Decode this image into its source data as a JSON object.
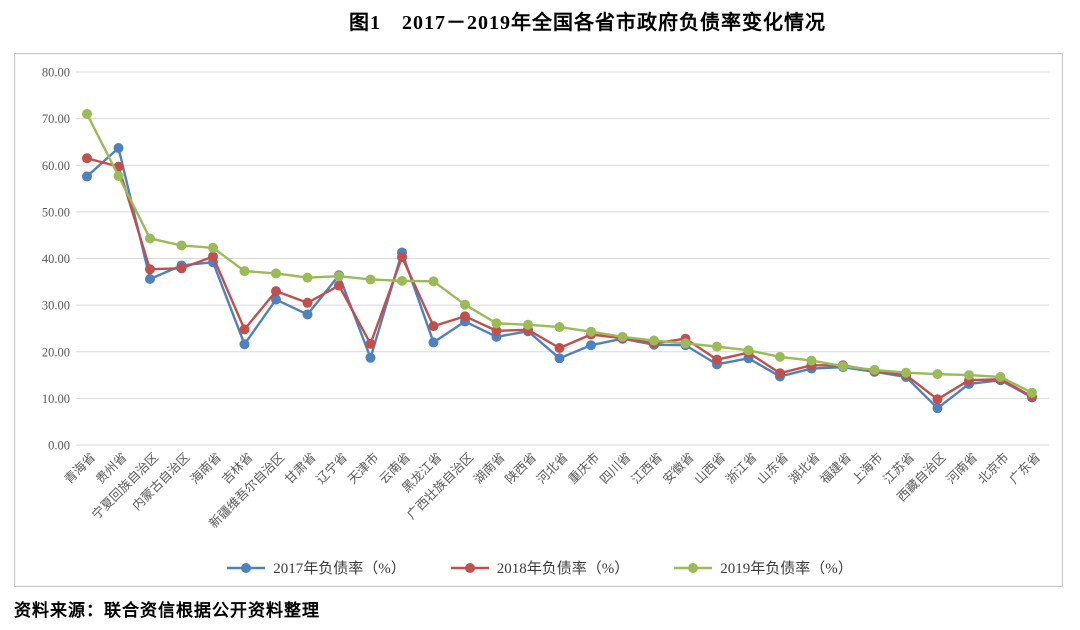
{
  "title": "图1　2017－2019年全国各省市政府负债率变化情况",
  "source": "资料来源：联合资信根据公开资料整理",
  "colors": {
    "s2017": "#4F81BD",
    "s2018": "#C0504D",
    "s2019": "#9BBB59",
    "grid": "#D9D9D9",
    "border": "#C9C9C9",
    "axis_text": "#595959",
    "legend_text": "#3B3B3B"
  },
  "chart_data": {
    "type": "line",
    "title": "图1　2017－2019年全国各省市政府负债率变化情况",
    "ylim": [
      0,
      80
    ],
    "ytick_step": 10,
    "yticks": [
      "80.00",
      "70.00",
      "60.00",
      "50.00",
      "40.00",
      "30.00",
      "20.00",
      "10.00",
      "0.00"
    ],
    "grid": "horizontal",
    "legend_position": "bottom",
    "categories": [
      "青海省",
      "贵州省",
      "宁夏回族自治区",
      "内蒙古自治区",
      "海南省",
      "吉林省",
      "新疆维吾尔自治区",
      "甘肃省",
      "辽宁省",
      "天津市",
      "云南省",
      "黑龙江省",
      "广西壮族自治区",
      "湖南省",
      "陕西省",
      "河北省",
      "重庆市",
      "四川省",
      "江西省",
      "安徽省",
      "山西省",
      "浙江省",
      "山东省",
      "湖北省",
      "福建省",
      "上海市",
      "江苏省",
      "西藏自治区",
      "河南省",
      "北京市",
      "广东省"
    ],
    "series": [
      {
        "id": "2017",
        "name": "2017年负债率（%）",
        "color": "s2017",
        "values": [
          57.6,
          63.7,
          35.6,
          38.5,
          39.2,
          21.6,
          31.2,
          28.0,
          36.4,
          18.7,
          41.3,
          22.0,
          26.5,
          23.2,
          24.4,
          18.6,
          21.4,
          22.8,
          21.5,
          21.4,
          17.3,
          18.6,
          14.7,
          16.4,
          16.7,
          15.7,
          14.6,
          7.9,
          13.1,
          13.9,
          10.2
        ]
      },
      {
        "id": "2018",
        "name": "2018年负债率（%）",
        "color": "s2018",
        "values": [
          61.5,
          59.7,
          37.7,
          37.9,
          40.4,
          24.8,
          33.0,
          30.5,
          34.2,
          21.7,
          40.3,
          25.5,
          27.6,
          24.5,
          24.7,
          20.8,
          23.7,
          22.9,
          21.8,
          22.8,
          18.3,
          19.8,
          15.4,
          17.1,
          17.1,
          15.9,
          15.0,
          9.8,
          13.9,
          14.1,
          10.4
        ]
      },
      {
        "id": "2019",
        "name": "2019年负债率（%）",
        "color": "s2019",
        "values": [
          71.0,
          57.7,
          44.3,
          42.8,
          42.3,
          37.3,
          36.8,
          35.9,
          36.2,
          35.5,
          35.2,
          35.1,
          30.1,
          26.1,
          25.8,
          25.3,
          24.3,
          23.2,
          22.4,
          21.8,
          21.1,
          20.3,
          18.9,
          18.1,
          16.9,
          16.1,
          15.5,
          15.2,
          15.0,
          14.6,
          11.2
        ]
      }
    ]
  }
}
